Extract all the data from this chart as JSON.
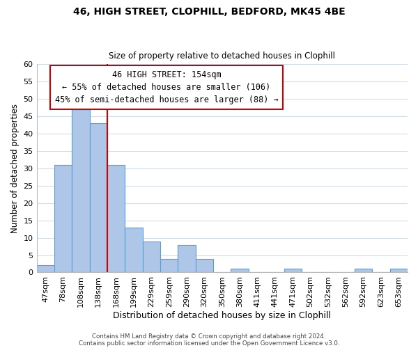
{
  "title": "46, HIGH STREET, CLOPHILL, BEDFORD, MK45 4BE",
  "subtitle": "Size of property relative to detached houses in Clophill",
  "xlabel": "Distribution of detached houses by size in Clophill",
  "ylabel": "Number of detached properties",
  "bar_labels": [
    "47sqm",
    "78sqm",
    "108sqm",
    "138sqm",
    "168sqm",
    "199sqm",
    "229sqm",
    "259sqm",
    "290sqm",
    "320sqm",
    "350sqm",
    "380sqm",
    "411sqm",
    "441sqm",
    "471sqm",
    "502sqm",
    "532sqm",
    "562sqm",
    "592sqm",
    "623sqm",
    "653sqm"
  ],
  "bar_values": [
    2,
    31,
    47,
    43,
    31,
    13,
    9,
    4,
    8,
    4,
    0,
    1,
    0,
    0,
    1,
    0,
    0,
    0,
    1,
    0,
    1
  ],
  "bar_color": "#aec6e8",
  "bar_edge_color": "#5a9fd4",
  "vline_x": 3.5,
  "vline_color": "#cc0000",
  "ylim": [
    0,
    60
  ],
  "yticks": [
    0,
    5,
    10,
    15,
    20,
    25,
    30,
    35,
    40,
    45,
    50,
    55,
    60
  ],
  "annotation_title": "46 HIGH STREET: 154sqm",
  "annotation_line1": "← 55% of detached houses are smaller (106)",
  "annotation_line2": "45% of semi-detached houses are larger (88) →",
  "annotation_box_color": "#ffffff",
  "annotation_box_edge": "#cc0000",
  "footer1": "Contains HM Land Registry data © Crown copyright and database right 2024.",
  "footer2": "Contains public sector information licensed under the Open Government Licence v3.0.",
  "background_color": "#ffffff",
  "grid_color": "#d0dce8"
}
